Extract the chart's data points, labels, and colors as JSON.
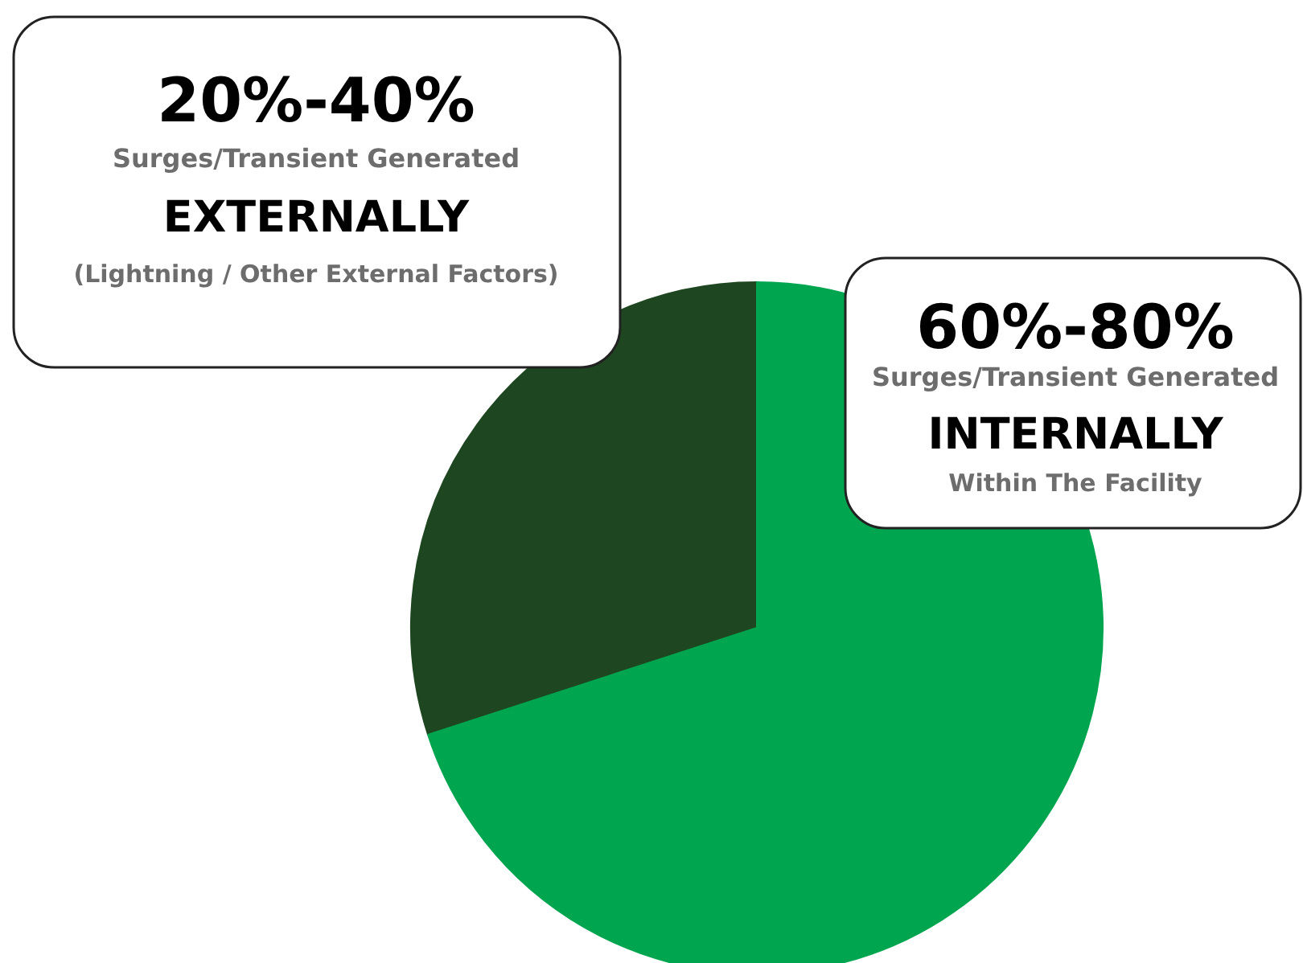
{
  "chart_data": {
    "type": "pie",
    "categories": [
      "EXTERNALLY",
      "INTERNALLY"
    ],
    "values": [
      30,
      70
    ],
    "colors": [
      "#1e4620",
      "#00a54f"
    ],
    "annotations": [
      "20%-40%",
      "Surges/Transient Generated",
      "(Lightning / Other External Factors)",
      "60%-80%",
      "Surges/Transient Generated",
      "Within The Facility"
    ]
  }
}
